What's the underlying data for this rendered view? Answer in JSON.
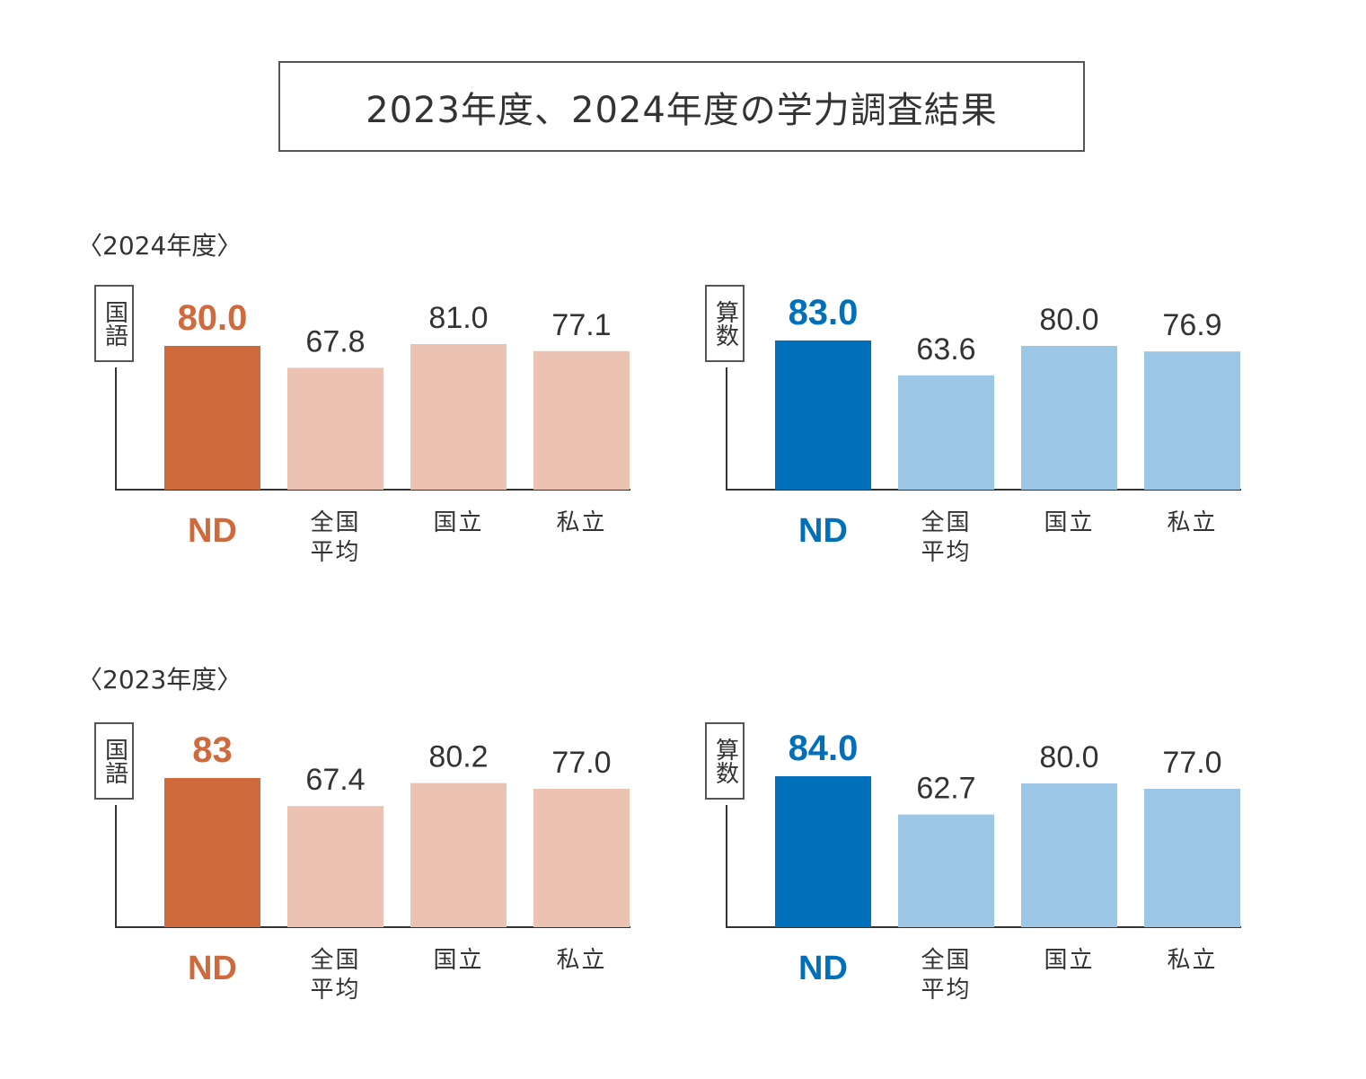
{
  "title": "2023年度、2024年度の学力調査結果",
  "years": [
    {
      "label": "〈2024年度〉"
    },
    {
      "label": "〈2023年度〉"
    }
  ],
  "colors": {
    "japanese_main": "#CF6A3C",
    "japanese_light": "#ECC3B3",
    "math_main": "#0070BA",
    "math_light": "#9BC6E5",
    "axis": "#333333"
  },
  "chart_data": [
    {
      "type": "bar",
      "year": "2024年度",
      "subject": "国語",
      "categories": [
        "ND",
        "全国\n平均",
        "国立",
        "私立"
      ],
      "values": [
        80.0,
        67.8,
        81.0,
        77.1
      ],
      "value_labels": [
        "80.0",
        "67.8",
        "81.0",
        "77.1"
      ],
      "ylim": [
        0,
        100
      ]
    },
    {
      "type": "bar",
      "year": "2024年度",
      "subject": "算数",
      "categories": [
        "ND",
        "全国\n平均",
        "国立",
        "私立"
      ],
      "values": [
        83.0,
        63.6,
        80.0,
        76.9
      ],
      "value_labels": [
        "83.0",
        "63.6",
        "80.0",
        "76.9"
      ],
      "ylim": [
        0,
        100
      ]
    },
    {
      "type": "bar",
      "year": "2023年度",
      "subject": "国語",
      "categories": [
        "ND",
        "全国\n平均",
        "国立",
        "私立"
      ],
      "values": [
        83,
        67.4,
        80.2,
        77.0
      ],
      "value_labels": [
        "83",
        "67.4",
        "80.2",
        "77.0"
      ],
      "ylim": [
        0,
        100
      ]
    },
    {
      "type": "bar",
      "year": "2023年度",
      "subject": "算数",
      "categories": [
        "ND",
        "全国\n平均",
        "国立",
        "私立"
      ],
      "values": [
        84.0,
        62.7,
        80.0,
        77.0
      ],
      "value_labels": [
        "84.0",
        "62.7",
        "80.0",
        "77.0"
      ],
      "ylim": [
        0,
        100
      ]
    }
  ]
}
